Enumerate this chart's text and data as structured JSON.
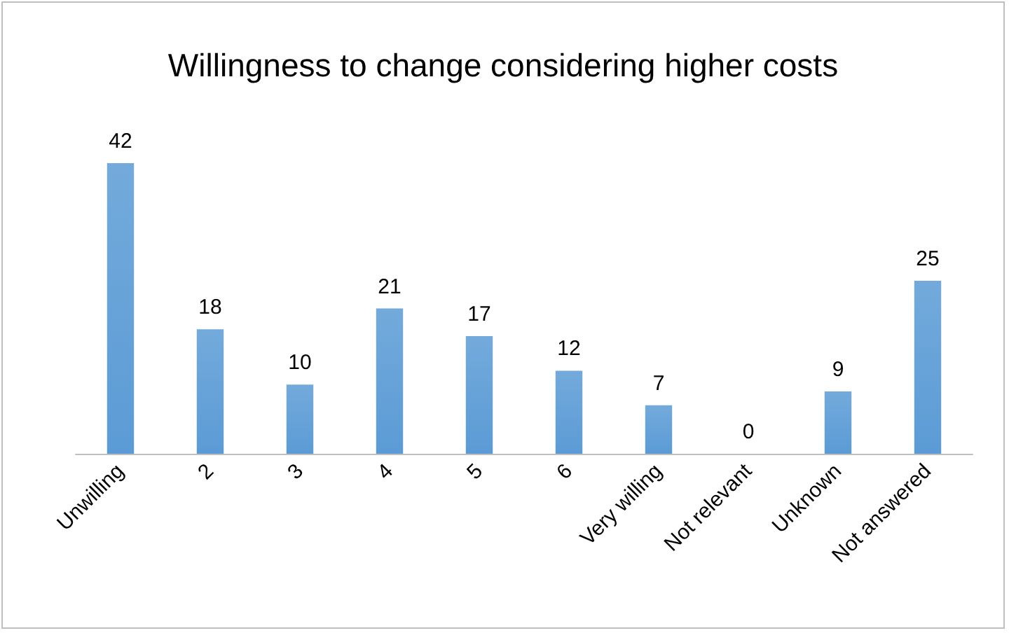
{
  "chart_data": {
    "type": "bar",
    "title": "Willingness to change considering higher costs",
    "categories": [
      "Unwilling",
      "2",
      "3",
      "4",
      "5",
      "6",
      "Very willing",
      "Not relevant",
      "Unknown",
      "Not answered"
    ],
    "values": [
      42,
      18,
      10,
      21,
      17,
      12,
      7,
      0,
      9,
      25
    ],
    "color": "#5b9bd5",
    "data_labels": true
  }
}
